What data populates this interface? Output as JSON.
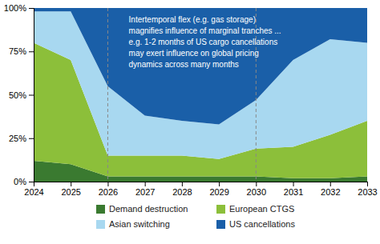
{
  "chart_data": {
    "type": "area",
    "stacked": true,
    "x": [
      2024,
      2025,
      2026,
      2027,
      2028,
      2029,
      2030,
      2031,
      2032,
      2033
    ],
    "series": [
      {
        "name": "Demand destruction",
        "color": "#3a7a30",
        "values": [
          0.12,
          0.1,
          0.03,
          0.03,
          0.03,
          0.03,
          0.03,
          0.02,
          0.02,
          0.03
        ]
      },
      {
        "name": "European CTGS",
        "color": "#8cbf3a",
        "values": [
          0.68,
          0.6,
          0.12,
          0.12,
          0.12,
          0.1,
          0.16,
          0.18,
          0.25,
          0.32
        ]
      },
      {
        "name": "Asian switching",
        "color": "#a8d8f0",
        "values": [
          0.18,
          0.28,
          0.4,
          0.23,
          0.2,
          0.2,
          0.28,
          0.5,
          0.55,
          0.45
        ]
      },
      {
        "name": "US cancellations",
        "color": "#1a5fa8",
        "values": [
          0.02,
          0.02,
          0.45,
          0.62,
          0.65,
          0.67,
          0.53,
          0.3,
          0.18,
          0.2
        ]
      }
    ],
    "xlim": [
      2024,
      2033
    ],
    "xticks": [
      2024,
      2025,
      2026,
      2027,
      2028,
      2029,
      2030,
      2031,
      2032,
      2033
    ],
    "ylim": [
      0,
      1.0
    ],
    "yticks": [
      {
        "value": 0,
        "label": "0%"
      },
      {
        "value": 0.25,
        "label": "25%"
      },
      {
        "value": 0.5,
        "label": "50%"
      },
      {
        "value": 0.75,
        "label": "75%"
      },
      {
        "value": 1.0,
        "label": "100%"
      }
    ],
    "vlines": [
      2026,
      2030
    ],
    "annotation": "Intertemporal flex (e.g. gas storage)\nmagnifies influence of marginal tranches ...\ne.g. 1-2 months of US cargo cancellations\nmay exert influence on global pricing\ndynamics across many months",
    "grid": false,
    "legend": "bottom"
  }
}
